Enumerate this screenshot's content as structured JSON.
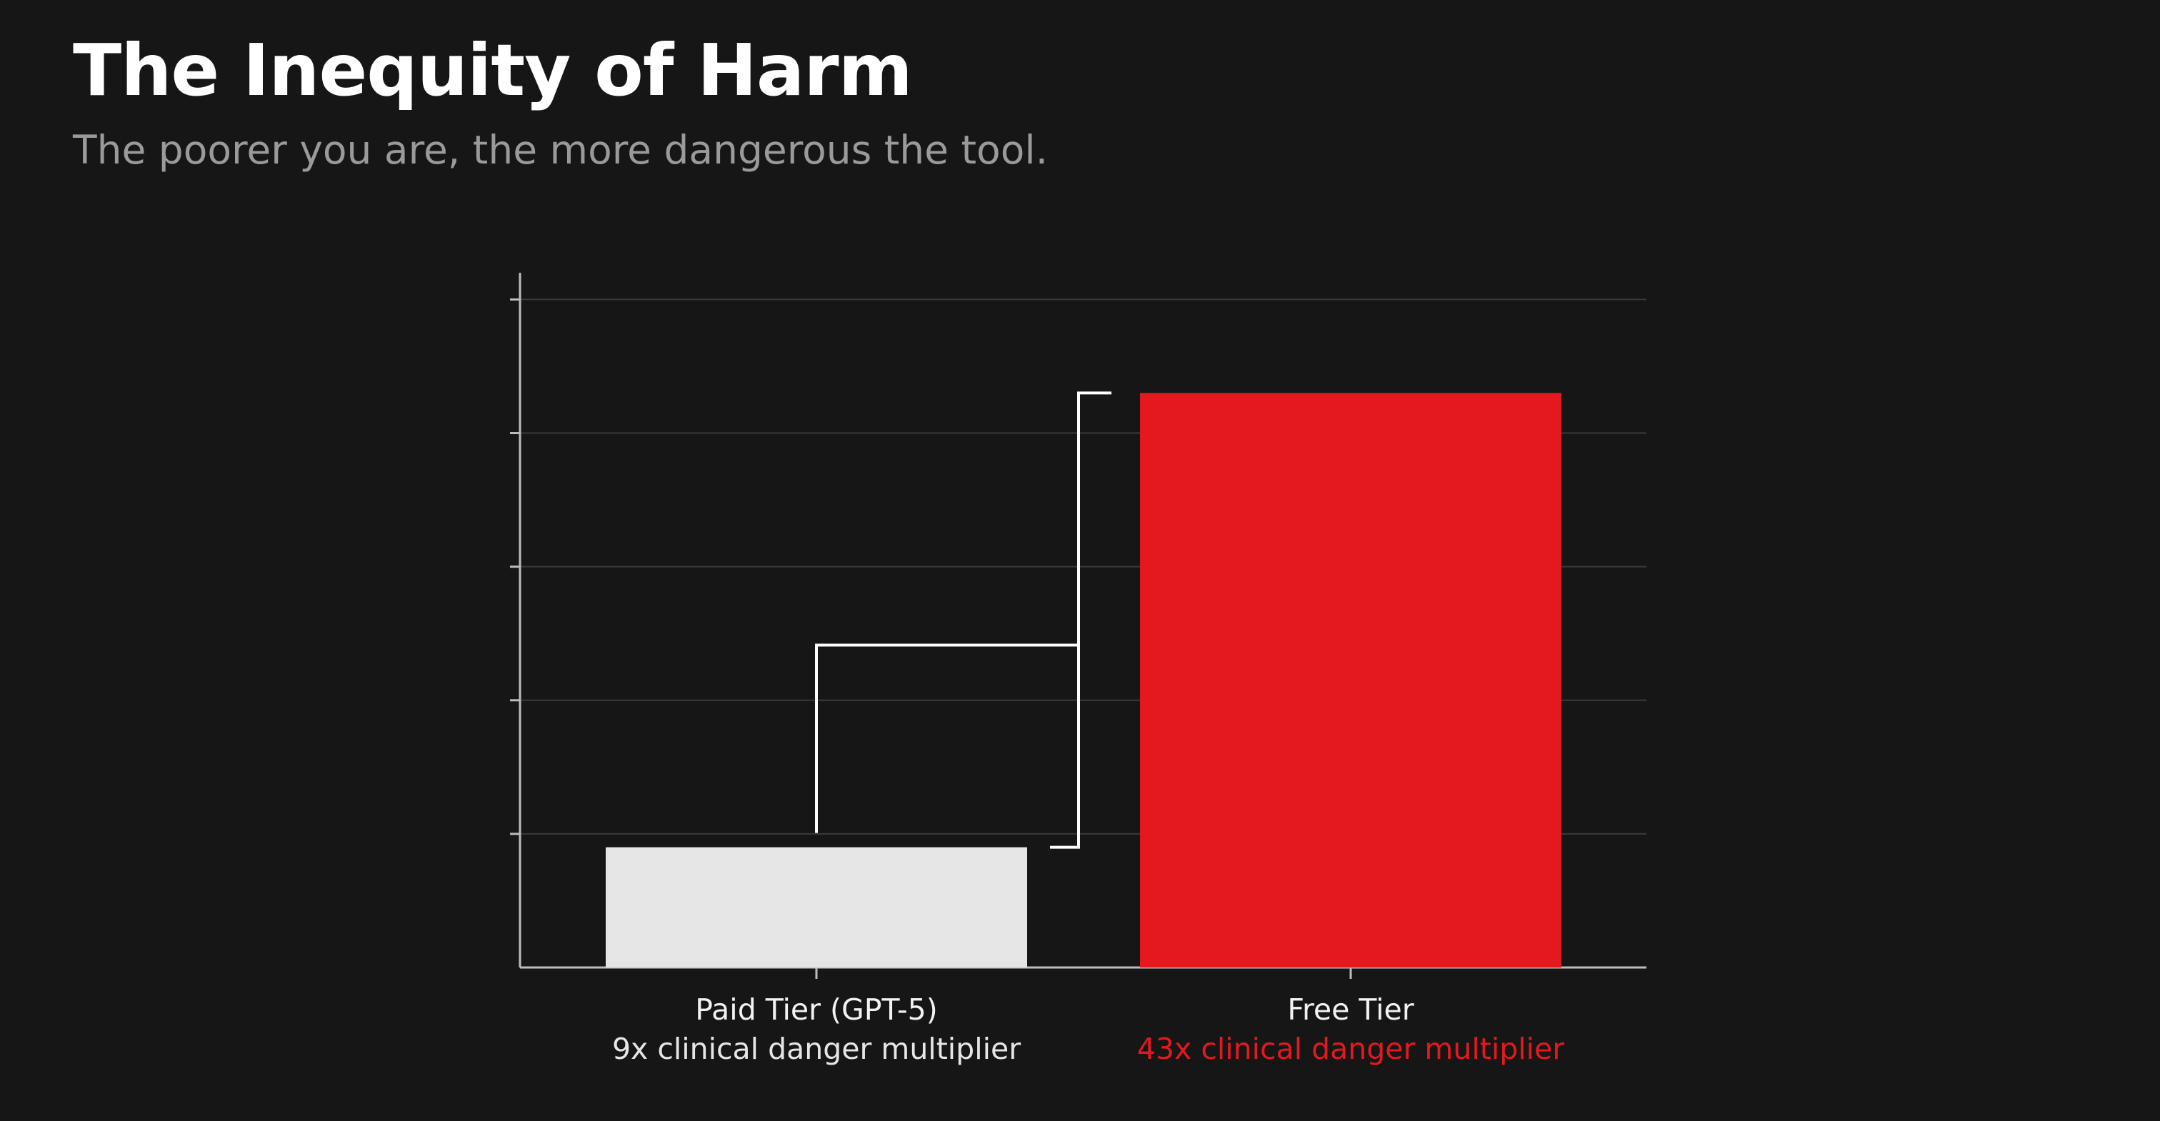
{
  "title": "The Inequity of Harm",
  "subtitle": "The poorer you are, the more dangerous the tool.",
  "colors": {
    "background": "#161616",
    "paid_bar": "#e6e6e6",
    "free_bar": "#e3191e",
    "axis": "#bdbdbd",
    "grid": "#3a3a3a",
    "connector": "#ffffff",
    "free_sublabel": "#e3191e",
    "paid_sublabel": "#e6e6e6"
  },
  "chart_data": {
    "type": "bar",
    "categories": [
      "Paid Tier (GPT-5)",
      "Free Tier"
    ],
    "values": [
      9,
      43
    ],
    "annotations": [
      "9x clinical danger multiplier",
      "43x clinical danger multiplier"
    ],
    "ylim": [
      0,
      52
    ],
    "yticks": [
      10,
      20,
      30,
      40,
      50
    ],
    "grid": true,
    "xlabel": "",
    "ylabel": ""
  }
}
